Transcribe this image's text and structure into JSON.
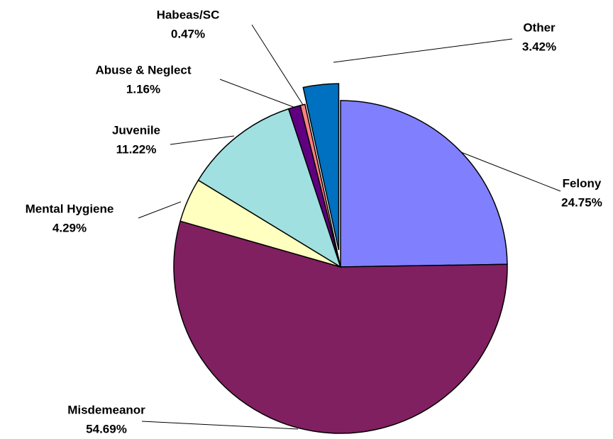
{
  "chart_data": {
    "type": "pie",
    "categories": [
      "Felony",
      "Misdemeanor",
      "Mental Hygiene",
      "Juvenile",
      "Abuse & Neglect",
      "Habeas/SC",
      "Other"
    ],
    "values": [
      24.75,
      54.69,
      4.29,
      11.22,
      1.16,
      0.47,
      3.42
    ],
    "value_labels": [
      "24.75%",
      "54.69%",
      "4.29%",
      "11.22%",
      "1.16%",
      "0.47%",
      "3.42%"
    ],
    "colors": [
      "#8080ff",
      "#802060",
      "#ffffc0",
      "#a0e0e0",
      "#600080",
      "#ff8080",
      "#0070c0"
    ],
    "exploded": [
      6
    ]
  }
}
